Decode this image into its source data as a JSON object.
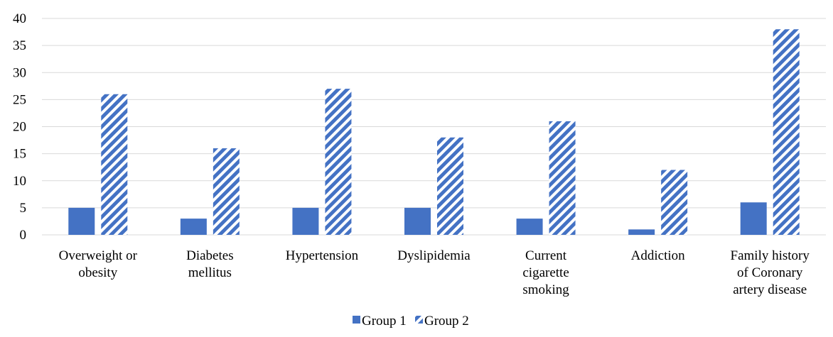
{
  "chart_data": {
    "type": "bar",
    "title": "",
    "xlabel": "",
    "ylabel": "",
    "ylim": [
      0,
      40
    ],
    "yticks": [
      0,
      5,
      10,
      15,
      20,
      25,
      30,
      35,
      40
    ],
    "grid": true,
    "legend_position": "bottom",
    "categories": [
      [
        "Overweight or",
        "obesity"
      ],
      [
        "Diabetes",
        "mellitus"
      ],
      [
        "Hypertension"
      ],
      [
        "Dyslipidemia"
      ],
      [
        "Current",
        "cigarette",
        "smoking"
      ],
      [
        "Addiction"
      ],
      [
        "Family history",
        "of Coronary",
        "artery disease"
      ]
    ],
    "series": [
      {
        "name": "Group 1",
        "values": [
          5,
          3,
          5,
          5,
          3,
          1,
          6
        ],
        "color": "#4472c4",
        "pattern": "solid"
      },
      {
        "name": "Group 2",
        "values": [
          26,
          16,
          27,
          18,
          21,
          12,
          38
        ],
        "color": "#4472c4",
        "pattern": "diagonal-stripes"
      }
    ]
  }
}
